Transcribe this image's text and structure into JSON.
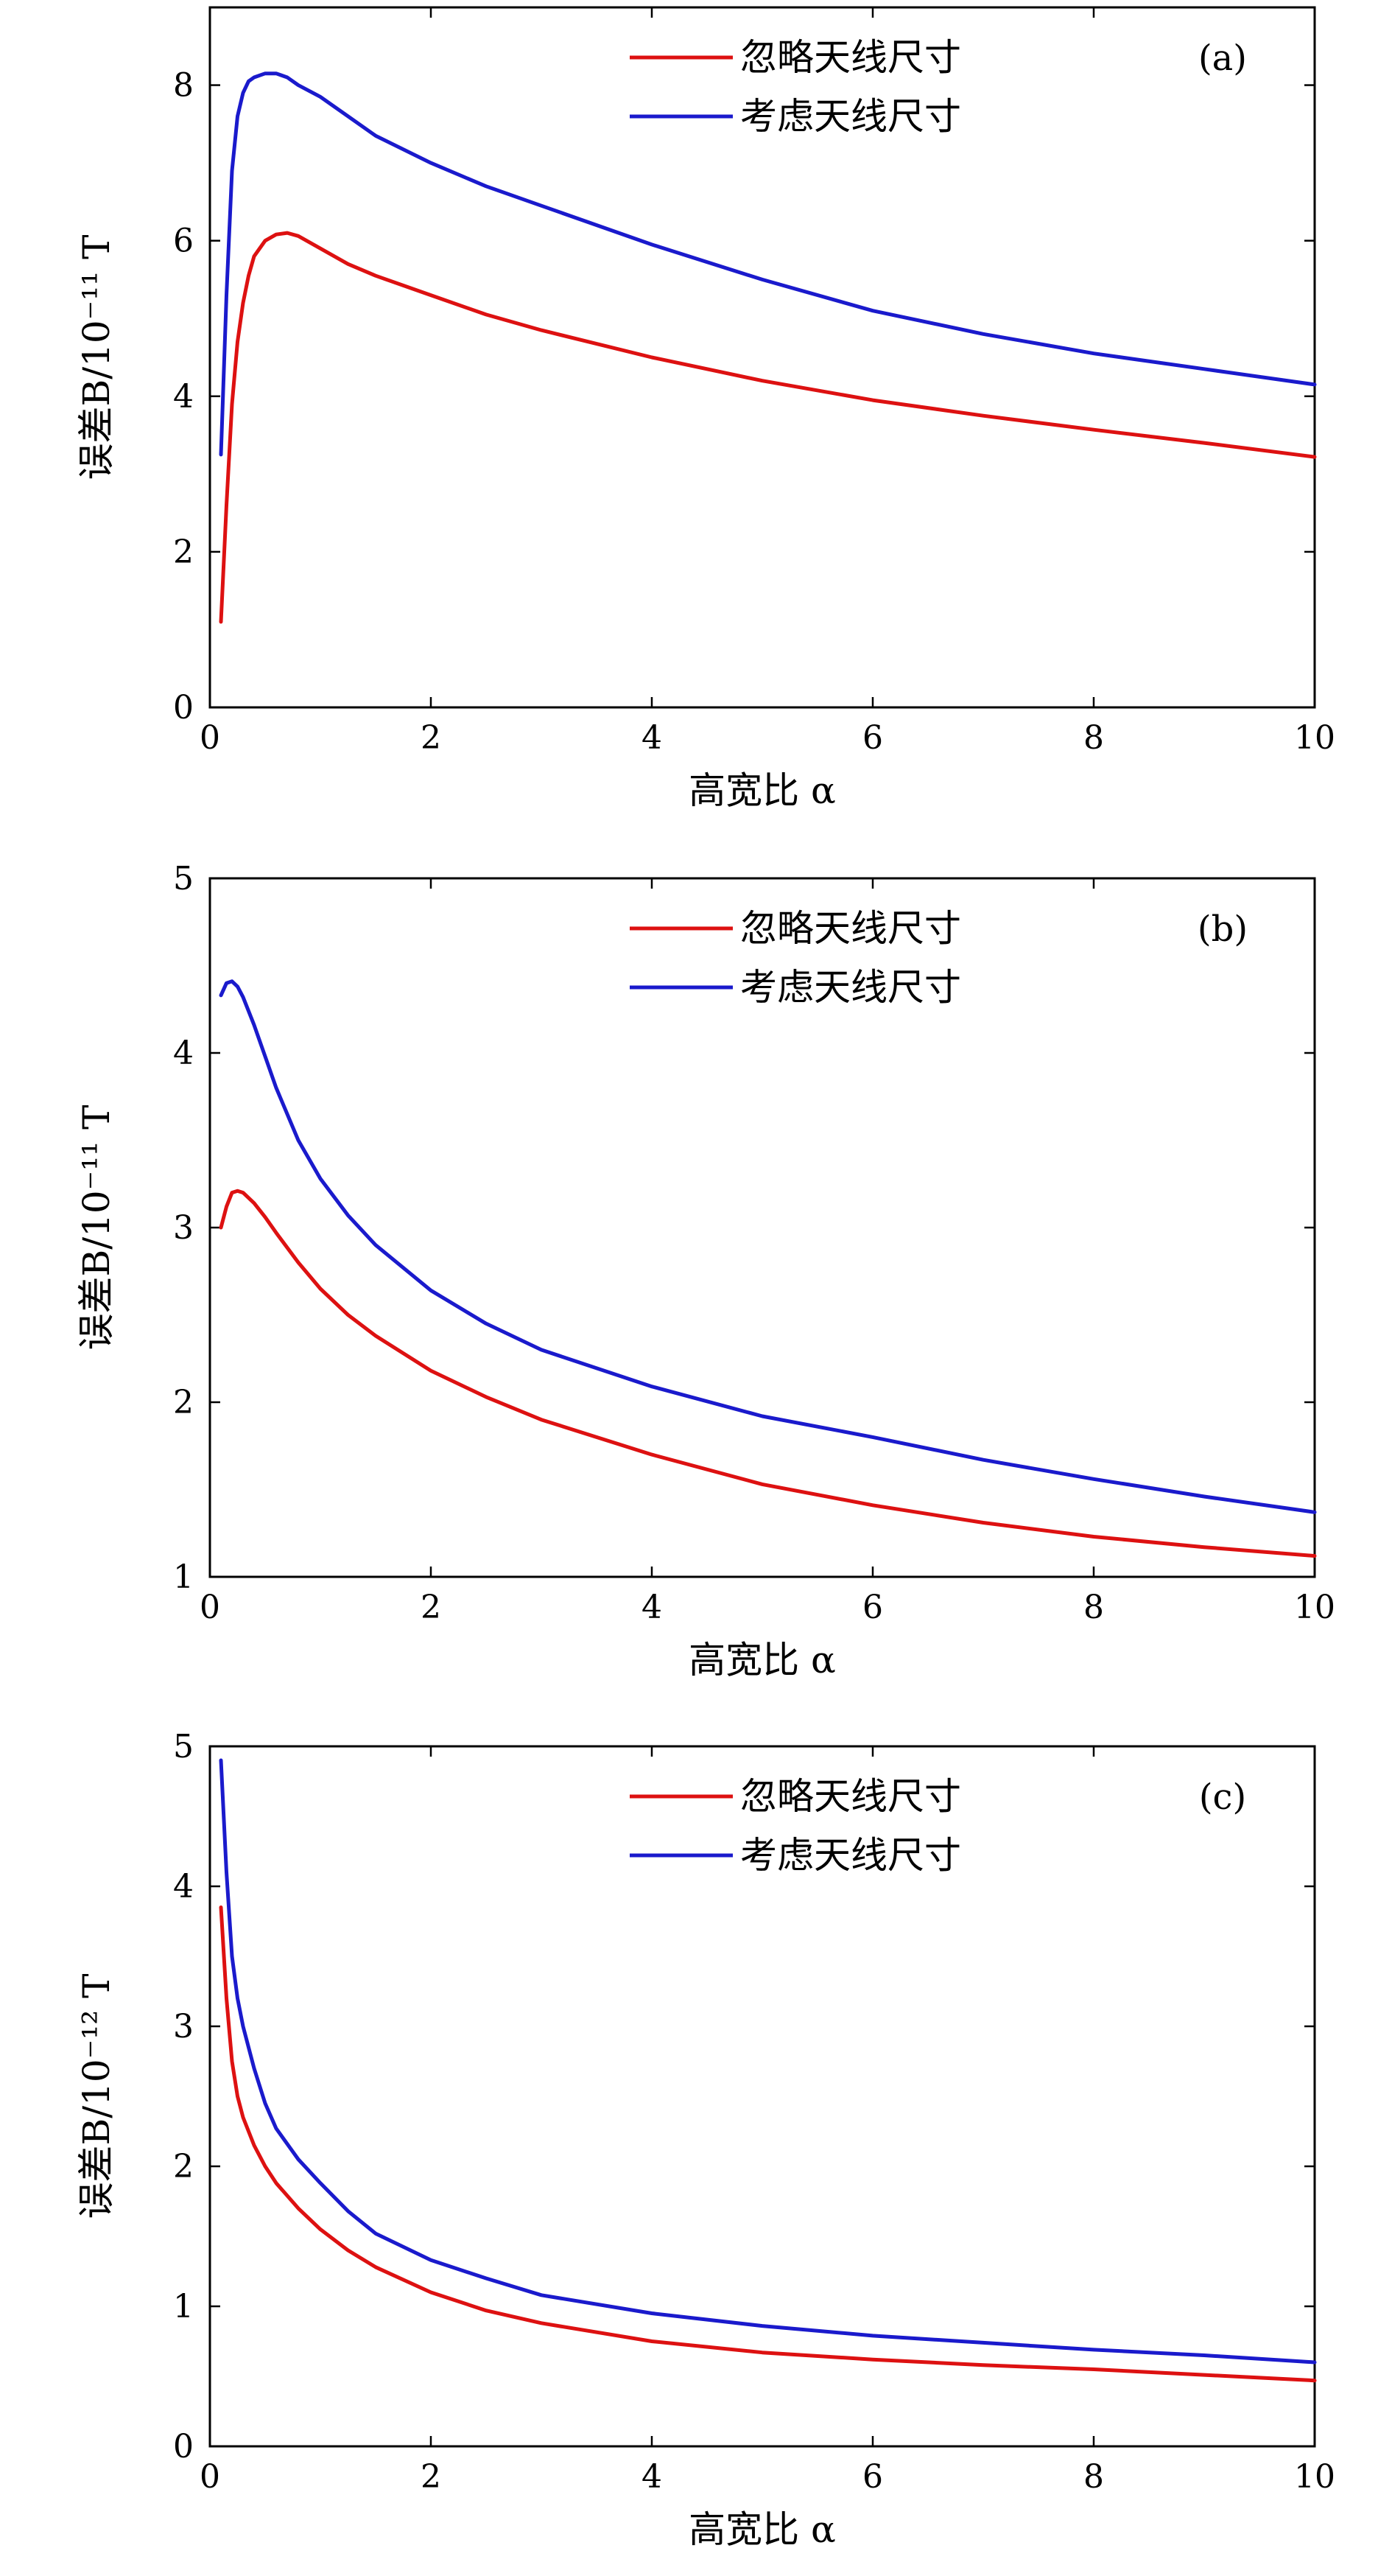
{
  "colors": {
    "red": "#dd1111",
    "blue": "#1a1acc"
  },
  "chart_data": [
    {
      "type": "line",
      "panel_tag": "(a)",
      "xlabel": "高宽比 α",
      "ylabel": "误差B/10⁻¹¹ T",
      "xlim": [
        0,
        10
      ],
      "ylim": [
        0,
        9
      ],
      "xticks": [
        0,
        2,
        4,
        6,
        8,
        10
      ],
      "yticks": [
        0,
        2,
        4,
        6,
        8
      ],
      "grid": false,
      "legend_position": "top-center",
      "series": [
        {
          "name": "忽略天线尺寸",
          "color": "#dd1111",
          "x": [
            0.1,
            0.15,
            0.2,
            0.25,
            0.3,
            0.35,
            0.4,
            0.5,
            0.6,
            0.7,
            0.8,
            1.0,
            1.25,
            1.5,
            2.0,
            2.5,
            3.0,
            4.0,
            5.0,
            6.0,
            7.0,
            8.0,
            9.0,
            10.0
          ],
          "values": [
            1.1,
            2.6,
            3.9,
            4.7,
            5.2,
            5.55,
            5.8,
            6.0,
            6.08,
            6.1,
            6.06,
            5.9,
            5.7,
            5.55,
            5.3,
            5.05,
            4.85,
            4.5,
            4.2,
            3.95,
            3.75,
            3.57,
            3.4,
            3.22
          ]
        },
        {
          "name": "考虑天线尺寸",
          "color": "#1a1acc",
          "x": [
            0.1,
            0.15,
            0.2,
            0.25,
            0.3,
            0.35,
            0.4,
            0.5,
            0.6,
            0.7,
            0.8,
            1.0,
            1.25,
            1.5,
            2.0,
            2.5,
            3.0,
            4.0,
            5.0,
            6.0,
            7.0,
            8.0,
            9.0,
            10.0
          ],
          "values": [
            3.25,
            5.3,
            6.9,
            7.6,
            7.9,
            8.05,
            8.1,
            8.15,
            8.15,
            8.1,
            8.0,
            7.85,
            7.6,
            7.35,
            7.0,
            6.7,
            6.45,
            5.95,
            5.5,
            5.1,
            4.8,
            4.55,
            4.35,
            4.15
          ]
        }
      ]
    },
    {
      "type": "line",
      "panel_tag": "(b)",
      "xlabel": "高宽比 α",
      "ylabel": "误差B/10⁻¹¹ T",
      "xlim": [
        0,
        10
      ],
      "ylim": [
        1,
        5
      ],
      "xticks": [
        0,
        2,
        4,
        6,
        8,
        10
      ],
      "yticks": [
        1,
        2,
        3,
        4,
        5
      ],
      "grid": false,
      "legend_position": "top-center",
      "series": [
        {
          "name": "忽略天线尺寸",
          "color": "#dd1111",
          "x": [
            0.1,
            0.15,
            0.2,
            0.25,
            0.3,
            0.4,
            0.5,
            0.6,
            0.8,
            1.0,
            1.25,
            1.5,
            2.0,
            2.5,
            3.0,
            4.0,
            5.0,
            6.0,
            7.0,
            8.0,
            9.0,
            10.0
          ],
          "values": [
            3.0,
            3.12,
            3.2,
            3.21,
            3.2,
            3.14,
            3.06,
            2.97,
            2.8,
            2.65,
            2.5,
            2.38,
            2.18,
            2.03,
            1.9,
            1.7,
            1.53,
            1.41,
            1.31,
            1.23,
            1.17,
            1.12
          ]
        },
        {
          "name": "考虑天线尺寸",
          "color": "#1a1acc",
          "x": [
            0.1,
            0.15,
            0.2,
            0.25,
            0.3,
            0.4,
            0.5,
            0.6,
            0.8,
            1.0,
            1.25,
            1.5,
            2.0,
            2.5,
            3.0,
            4.0,
            5.0,
            6.0,
            7.0,
            8.0,
            9.0,
            10.0
          ],
          "values": [
            4.33,
            4.4,
            4.41,
            4.38,
            4.32,
            4.16,
            3.98,
            3.8,
            3.5,
            3.28,
            3.07,
            2.9,
            2.64,
            2.45,
            2.3,
            2.09,
            1.92,
            1.8,
            1.67,
            1.56,
            1.46,
            1.37
          ]
        }
      ]
    },
    {
      "type": "line",
      "panel_tag": "(c)",
      "xlabel": "高宽比 α",
      "ylabel": "误差B/10⁻¹² T",
      "xlim": [
        0,
        10
      ],
      "ylim": [
        0,
        5
      ],
      "xticks": [
        0,
        2,
        4,
        6,
        8,
        10
      ],
      "yticks": [
        0,
        1,
        2,
        3,
        4,
        5
      ],
      "grid": false,
      "legend_position": "top-center",
      "series": [
        {
          "name": "忽略天线尺寸",
          "color": "#dd1111",
          "x": [
            0.1,
            0.15,
            0.2,
            0.25,
            0.3,
            0.4,
            0.5,
            0.6,
            0.8,
            1.0,
            1.25,
            1.5,
            2.0,
            2.5,
            3.0,
            4.0,
            5.0,
            6.0,
            7.0,
            8.0,
            9.0,
            10.0
          ],
          "values": [
            3.85,
            3.2,
            2.75,
            2.5,
            2.35,
            2.15,
            2.0,
            1.88,
            1.7,
            1.55,
            1.4,
            1.28,
            1.1,
            0.97,
            0.88,
            0.75,
            0.67,
            0.62,
            0.58,
            0.55,
            0.51,
            0.47
          ]
        },
        {
          "name": "考虑天线尺寸",
          "color": "#1a1acc",
          "x": [
            0.1,
            0.15,
            0.2,
            0.25,
            0.3,
            0.4,
            0.5,
            0.6,
            0.8,
            1.0,
            1.25,
            1.5,
            2.0,
            2.5,
            3.0,
            4.0,
            5.0,
            6.0,
            7.0,
            8.0,
            9.0,
            10.0
          ],
          "values": [
            4.9,
            4.1,
            3.5,
            3.2,
            3.0,
            2.7,
            2.45,
            2.27,
            2.05,
            1.88,
            1.68,
            1.52,
            1.33,
            1.2,
            1.08,
            0.95,
            0.86,
            0.79,
            0.74,
            0.69,
            0.65,
            0.6
          ]
        }
      ]
    }
  ]
}
